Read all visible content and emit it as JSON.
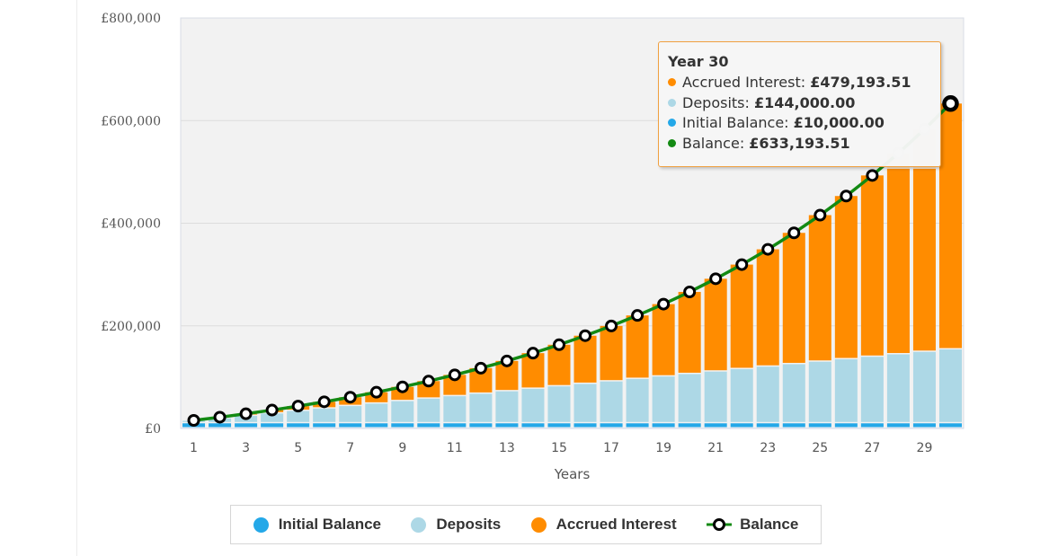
{
  "chart_data": {
    "type": "bar",
    "stacked": true,
    "title": "",
    "xlabel": "Years",
    "ylabel": "",
    "ylim": [
      0,
      800000
    ],
    "yticks": [
      0,
      200000,
      400000,
      600000,
      800000
    ],
    "ytick_labels": [
      "£0",
      "£200,000",
      "£400,000",
      "£600,000",
      "£800,000"
    ],
    "xtick_labels": [
      "1",
      "3",
      "5",
      "7",
      "9",
      "11",
      "13",
      "15",
      "17",
      "19",
      "21",
      "23",
      "25",
      "27",
      "29"
    ],
    "categories": [
      1,
      2,
      3,
      4,
      5,
      6,
      7,
      8,
      9,
      10,
      11,
      12,
      13,
      14,
      15,
      16,
      17,
      18,
      19,
      20,
      21,
      22,
      23,
      24,
      25,
      26,
      27,
      28,
      29,
      30
    ],
    "grid": true,
    "legend_position": "bottom",
    "series": [
      {
        "name": "Initial Balance",
        "kind": "bar",
        "color": "#24a8e8",
        "values": [
          10000,
          10000,
          10000,
          10000,
          10000,
          10000,
          10000,
          10000,
          10000,
          10000,
          10000,
          10000,
          10000,
          10000,
          10000,
          10000,
          10000,
          10000,
          10000,
          10000,
          10000,
          10000,
          10000,
          10000,
          10000,
          10000,
          10000,
          10000,
          10000,
          10000
        ]
      },
      {
        "name": "Deposits",
        "kind": "bar",
        "color": "#add8e6",
        "values": [
          4800,
          9600,
          14400,
          19200,
          24000,
          28800,
          33600,
          38400,
          43200,
          48000,
          52800,
          57600,
          62400,
          67200,
          72000,
          76800,
          81600,
          86400,
          91200,
          96000,
          100800,
          105600,
          110400,
          115200,
          120000,
          124800,
          129600,
          134400,
          139200,
          144000
        ]
      },
      {
        "name": "Accrued Interest",
        "kind": "bar",
        "color": "#ff8c00",
        "values": [
          944,
          2336,
          4208,
          6596,
          9544,
          13092,
          17289,
          22183,
          27833,
          34291,
          41625,
          49900,
          59190,
          69574,
          81137,
          93970,
          108173,
          123850,
          141117,
          160098,
          180924,
          203740,
          228700,
          255970,
          285729,
          318172,
          353506,
          391956,
          433764,
          479193.51
        ]
      },
      {
        "name": "Balance",
        "kind": "line",
        "color": "#138a13",
        "values": [
          15744,
          21936,
          28608,
          35796,
          43544,
          51892,
          60889,
          70583,
          81033,
          92291,
          104425,
          117500,
          131590,
          146774,
          163137,
          180770,
          199773,
          220250,
          242317,
          266098,
          291724,
          319340,
          349100,
          381170,
          415729,
          452972,
          493106,
          536356,
          582964,
          633193.51
        ]
      }
    ]
  },
  "tooltip": {
    "title": "Year 30",
    "rows": [
      {
        "label": "Accrued Interest: ",
        "value": "£479,193.51",
        "color": "#ff8c00"
      },
      {
        "label": "Deposits: ",
        "value": "£144,000.00",
        "color": "#add8e6"
      },
      {
        "label": "Initial Balance: ",
        "value": "£10,000.00",
        "color": "#24a8e8"
      },
      {
        "label": "Balance: ",
        "value": "£633,193.51",
        "color": "#138a13"
      }
    ]
  },
  "legend": {
    "items": [
      {
        "label": "Initial Balance",
        "color": "#24a8e8",
        "symbol": "circle"
      },
      {
        "label": "Deposits",
        "color": "#add8e6",
        "symbol": "circle"
      },
      {
        "label": "Accrued Interest",
        "color": "#ff8c00",
        "symbol": "circle"
      },
      {
        "label": "Balance",
        "color": "#138a13",
        "symbol": "line-marker"
      }
    ]
  }
}
